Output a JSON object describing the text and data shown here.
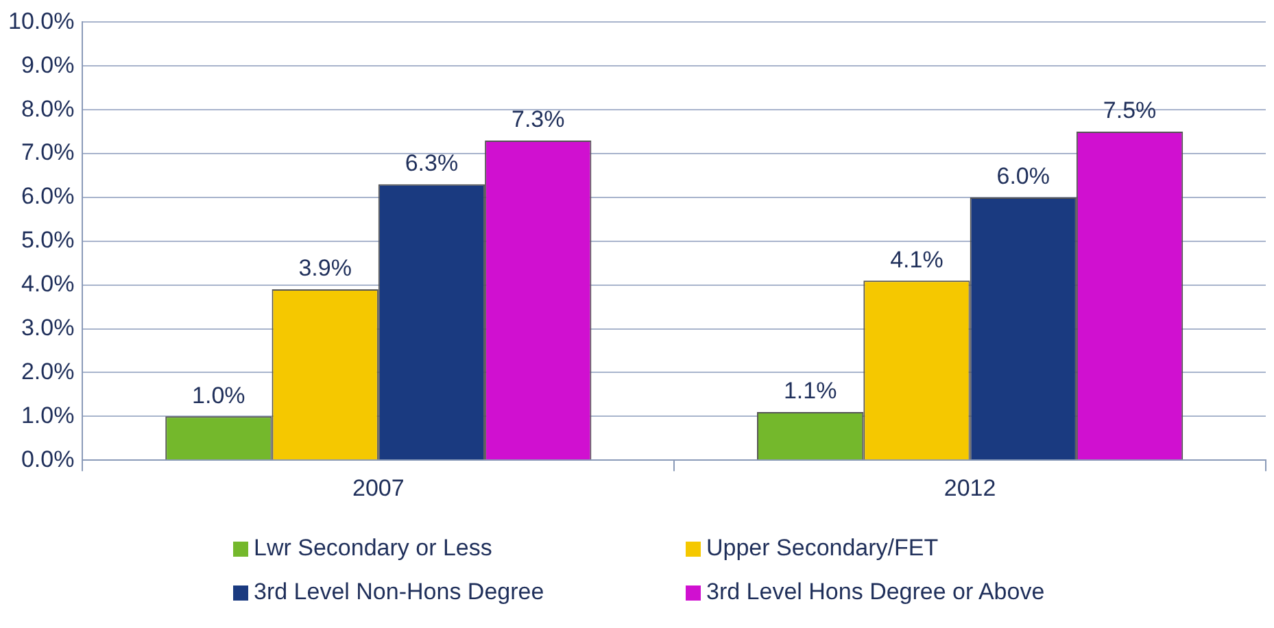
{
  "chart_data": {
    "type": "bar",
    "categories": [
      "2007",
      "2012"
    ],
    "series": [
      {
        "name": "Lwr Secondary or Less",
        "color": "#74b82c",
        "values": [
          1.0,
          1.1
        ],
        "value_labels": [
          "1.0%",
          "1.1%"
        ]
      },
      {
        "name": "Upper Secondary/FET",
        "color": "#f5c800",
        "values": [
          3.9,
          4.1
        ],
        "value_labels": [
          "3.9%",
          "4.1%"
        ]
      },
      {
        "name": "3rd Level Non-Hons Degree",
        "color": "#1a3a80",
        "values": [
          6.3,
          6.0
        ],
        "value_labels": [
          "6.3%",
          "6.0%"
        ]
      },
      {
        "name": "3rd Level Hons Degree or Above",
        "color": "#d010d0",
        "values": [
          7.3,
          7.5
        ],
        "value_labels": [
          "7.3%",
          "7.5%"
        ]
      }
    ],
    "ylim": [
      0,
      10
    ],
    "yticks": [
      {
        "value": 0,
        "label": "0.0%"
      },
      {
        "value": 1,
        "label": "1.0%"
      },
      {
        "value": 2,
        "label": "2.0%"
      },
      {
        "value": 3,
        "label": "3.0%"
      },
      {
        "value": 4,
        "label": "4.0%"
      },
      {
        "value": 5,
        "label": "5.0%"
      },
      {
        "value": 6,
        "label": "6.0%"
      },
      {
        "value": 7,
        "label": "7.0%"
      },
      {
        "value": 8,
        "label": "8.0%"
      },
      {
        "value": 9,
        "label": "9.0%"
      },
      {
        "value": 10,
        "label": "10.0%"
      }
    ],
    "grid": "y",
    "legend": "bottom"
  }
}
